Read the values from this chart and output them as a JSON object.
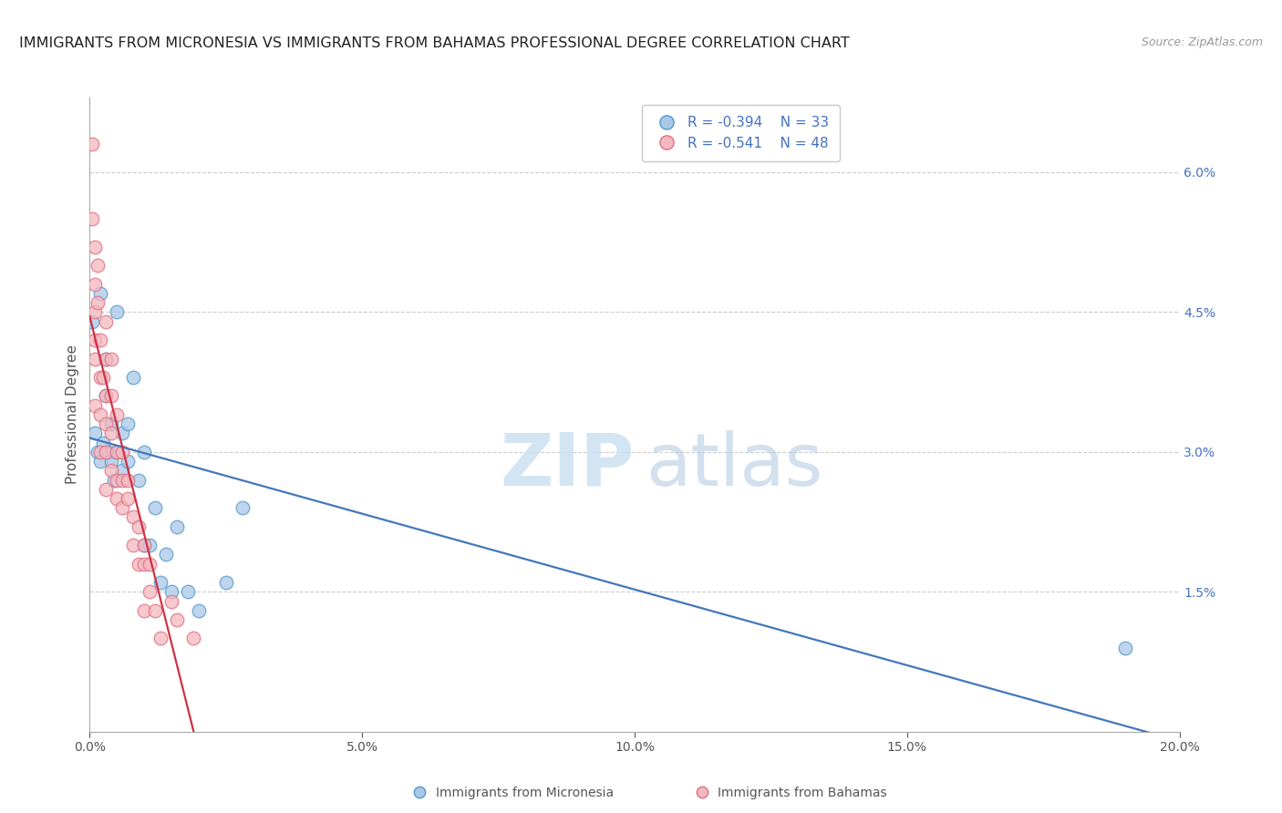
{
  "title": "IMMIGRANTS FROM MICRONESIA VS IMMIGRANTS FROM BAHAMAS PROFESSIONAL DEGREE CORRELATION CHART",
  "source": "Source: ZipAtlas.com",
  "ylabel": "Professional Degree",
  "legend_blue_r": "R = -0.394",
  "legend_blue_n": "N = 33",
  "legend_pink_r": "R = -0.541",
  "legend_pink_n": "N = 48",
  "x_min": 0.0,
  "x_max": 0.2,
  "y_min": 0.0,
  "y_max": 0.068,
  "right_yticks": [
    0.0,
    0.015,
    0.03,
    0.045,
    0.06
  ],
  "right_yticklabels": [
    "",
    "1.5%",
    "3.0%",
    "4.5%",
    "6.0%"
  ],
  "blue_color": "#a8c8e8",
  "blue_edge_color": "#5599cc",
  "pink_color": "#f4b8c0",
  "pink_edge_color": "#e07080",
  "blue_line_color": "#4477bb",
  "pink_line_color": "#cc3344",
  "blue_scatter_x": [
    0.0005,
    0.001,
    0.0015,
    0.002,
    0.002,
    0.0025,
    0.003,
    0.003,
    0.0035,
    0.004,
    0.004,
    0.0045,
    0.005,
    0.005,
    0.006,
    0.006,
    0.007,
    0.007,
    0.008,
    0.009,
    0.01,
    0.01,
    0.011,
    0.012,
    0.013,
    0.014,
    0.015,
    0.016,
    0.018,
    0.02,
    0.025,
    0.028,
    0.19
  ],
  "blue_scatter_y": [
    0.044,
    0.032,
    0.03,
    0.047,
    0.029,
    0.031,
    0.04,
    0.036,
    0.03,
    0.033,
    0.029,
    0.027,
    0.045,
    0.03,
    0.032,
    0.028,
    0.033,
    0.029,
    0.038,
    0.027,
    0.03,
    0.02,
    0.02,
    0.024,
    0.016,
    0.019,
    0.015,
    0.022,
    0.015,
    0.013,
    0.016,
    0.024,
    0.009
  ],
  "pink_scatter_x": [
    0.0005,
    0.0005,
    0.001,
    0.001,
    0.001,
    0.001,
    0.001,
    0.001,
    0.0015,
    0.0015,
    0.002,
    0.002,
    0.002,
    0.002,
    0.0025,
    0.003,
    0.003,
    0.003,
    0.003,
    0.003,
    0.003,
    0.004,
    0.004,
    0.004,
    0.004,
    0.005,
    0.005,
    0.005,
    0.005,
    0.006,
    0.006,
    0.006,
    0.007,
    0.007,
    0.008,
    0.008,
    0.009,
    0.009,
    0.01,
    0.01,
    0.01,
    0.011,
    0.011,
    0.012,
    0.013,
    0.015,
    0.016,
    0.019
  ],
  "pink_scatter_y": [
    0.063,
    0.055,
    0.052,
    0.048,
    0.045,
    0.042,
    0.04,
    0.035,
    0.05,
    0.046,
    0.042,
    0.038,
    0.034,
    0.03,
    0.038,
    0.044,
    0.04,
    0.036,
    0.033,
    0.03,
    0.026,
    0.04,
    0.036,
    0.032,
    0.028,
    0.034,
    0.03,
    0.027,
    0.025,
    0.03,
    0.027,
    0.024,
    0.027,
    0.025,
    0.023,
    0.02,
    0.022,
    0.018,
    0.02,
    0.018,
    0.013,
    0.018,
    0.015,
    0.013,
    0.01,
    0.014,
    0.012,
    0.01
  ],
  "blue_line_x0": 0.0,
  "blue_line_y0": 0.0315,
  "blue_line_x1": 0.2,
  "blue_line_y1": -0.001,
  "pink_line_x0": 0.0,
  "pink_line_y0": 0.0445,
  "pink_line_x1": 0.0195,
  "pink_line_y1": -0.001,
  "background_color": "#ffffff",
  "grid_color": "#cccccc",
  "title_fontsize": 11.5,
  "source_fontsize": 9,
  "axis_label_fontsize": 11,
  "tick_fontsize": 10,
  "legend_label_blue": "Immigrants from Micronesia",
  "legend_label_pink": "Immigrants from Bahamas"
}
